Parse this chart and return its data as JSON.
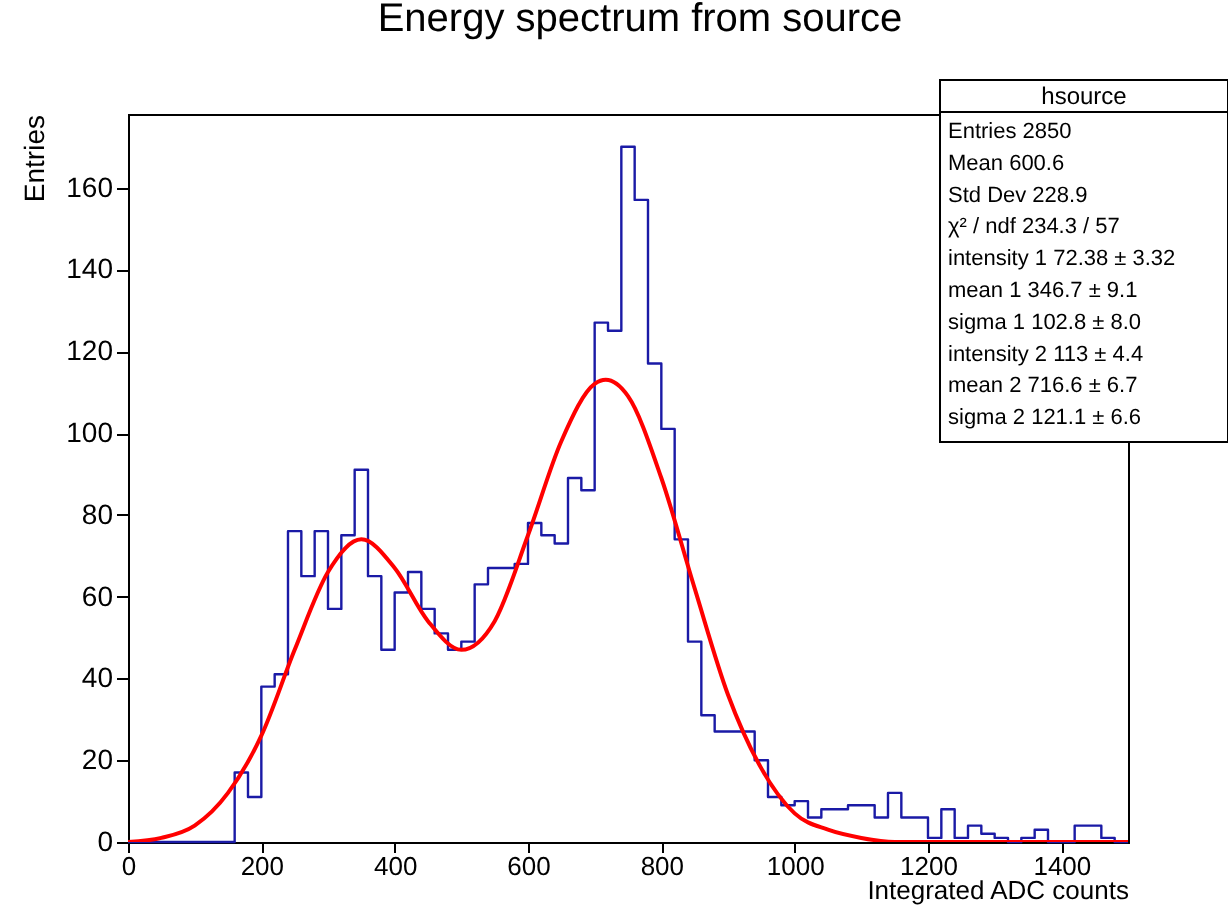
{
  "chart_data": {
    "type": "histogram",
    "title": "Energy spectrum from source",
    "xlabel": "Integrated ADC counts",
    "ylabel": "Entries",
    "color": "#1a1aa6",
    "bins": [
      0,
      20,
      40,
      60,
      80,
      100,
      120,
      140,
      160,
      180,
      200,
      220,
      240,
      260,
      280,
      300,
      320,
      340,
      360,
      380,
      400,
      420,
      440,
      460,
      480,
      500,
      520,
      540,
      560,
      580,
      600,
      620,
      640,
      660,
      680,
      700,
      720,
      740,
      760,
      780,
      800,
      820,
      840,
      860,
      880,
      900,
      920,
      940,
      960,
      980,
      1000,
      1020,
      1040,
      1060,
      1080,
      1100,
      1120,
      1140,
      1160,
      1180,
      1200,
      1220,
      1240,
      1260,
      1280,
      1300,
      1320,
      1340,
      1360,
      1380,
      1400,
      1420,
      1440,
      1460,
      1480,
      1500
    ],
    "values": [
      0,
      0,
      0,
      0,
      0,
      0,
      0,
      0,
      17,
      11,
      38,
      41,
      76,
      65,
      76,
      57,
      75,
      91,
      65,
      47,
      61,
      66,
      57,
      51,
      47,
      49,
      63,
      67,
      67,
      68,
      78,
      75,
      73,
      89,
      86,
      127,
      125,
      170,
      157,
      117,
      101,
      74,
      49,
      31,
      27,
      27,
      27,
      20,
      11,
      9,
      10,
      6,
      8,
      8,
      9,
      9,
      6,
      12,
      6,
      6,
      1,
      8,
      1,
      4,
      2,
      1,
      0,
      1,
      3,
      0,
      0,
      4,
      4,
      1,
      0
    ],
    "series": [
      {
        "type": "line",
        "color": "#ff0000",
        "x": [
          0,
          50,
          100,
          150,
          200,
          250,
          300,
          350,
          400,
          450,
          500,
          550,
          600,
          650,
          700,
          716.6,
          750,
          800,
          850,
          900,
          950,
          1000,
          1050,
          1100,
          1150,
          1200,
          1300,
          1500
        ],
        "values": [
          0,
          1,
          4,
          12,
          26,
          47,
          66,
          74,
          67,
          54,
          47,
          54,
          75,
          98,
          112,
          113,
          109,
          89,
          62,
          36,
          18,
          7,
          3,
          1,
          0,
          0,
          0,
          0
        ]
      }
    ],
    "xlim": [
      0,
      1500
    ],
    "xticks": [
      0,
      200,
      400,
      600,
      800,
      1000,
      1200,
      1400
    ],
    "ylim": [
      0,
      178
    ],
    "yticks": [
      0,
      20,
      40,
      60,
      80,
      100,
      120,
      140,
      160
    ],
    "annotations": [
      "hsource",
      "Entries 2850",
      "Mean 600.6",
      "Std Dev 228.9",
      "χ² / ndf 234.3 / 57",
      "intensity 1 72.38 ± 3.32",
      "mean 1 346.7 ± 9.1",
      "sigma 1 102.8 ± 8.0",
      "intensity 2 113 ± 4.4",
      "mean 2 716.6 ± 6.7",
      "sigma 2 121.1 ± 6.6"
    ]
  }
}
